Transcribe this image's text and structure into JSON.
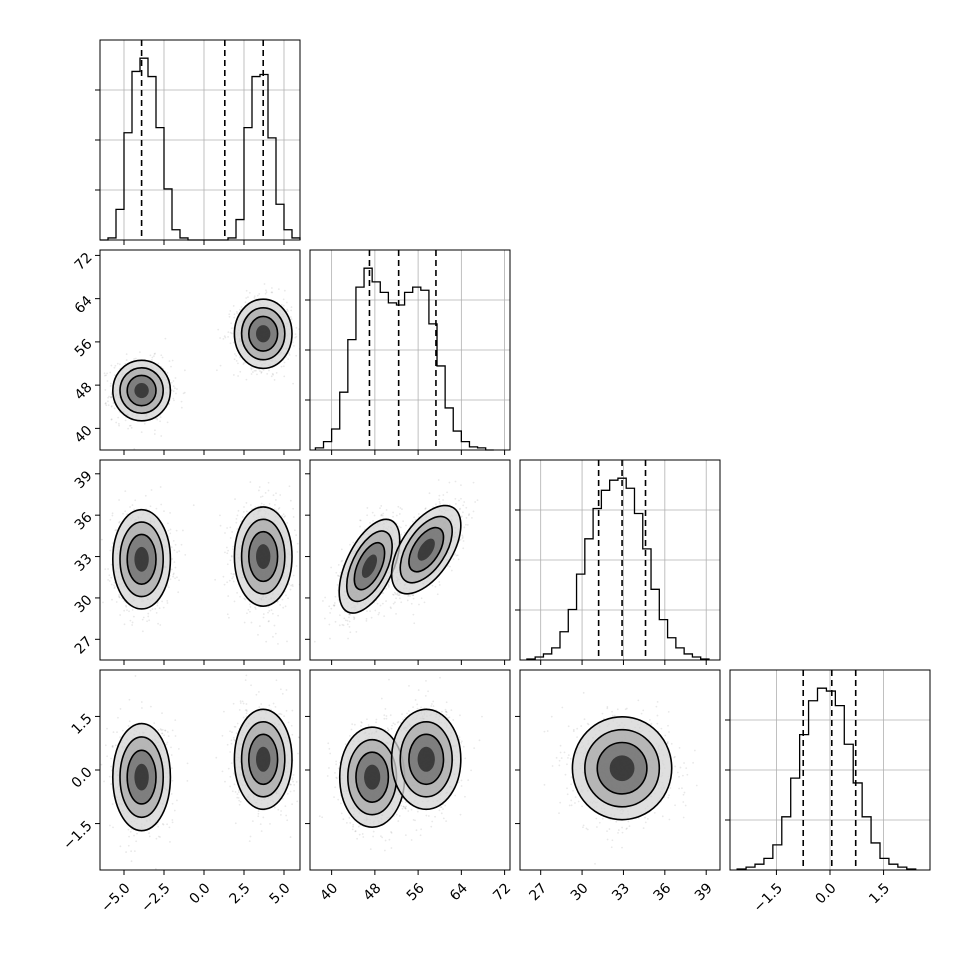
{
  "chart_data": {
    "type": "corner",
    "description_of_layout": "4x4 lower-triangular corner plot of 4 parameters",
    "parameters": [
      {
        "index": 0,
        "range": [
          -6.5,
          6.0
        ],
        "ticks": [
          -5.0,
          -2.5,
          0.0,
          2.5,
          5.0
        ],
        "tick_labels": [
          "−5.0",
          "−2.5",
          "0.0",
          "2.5",
          "5.0"
        ]
      },
      {
        "index": 1,
        "range": [
          36,
          73
        ],
        "ticks": [
          40,
          48,
          56,
          64,
          72
        ],
        "tick_labels": [
          "40",
          "48",
          "56",
          "64",
          "72"
        ]
      },
      {
        "index": 2,
        "range": [
          25.5,
          40
        ],
        "ticks": [
          27,
          30,
          33,
          36,
          39
        ],
        "tick_labels": [
          "27",
          "30",
          "33",
          "36",
          "39"
        ]
      },
      {
        "index": 3,
        "range": [
          -2.8,
          2.8
        ],
        "ticks": [
          -1.5,
          0.0,
          1.5
        ],
        "tick_labels": [
          "−1.5",
          "0.0",
          "1.5"
        ]
      }
    ],
    "quantiles": [
      [
        -3.9,
        1.3,
        3.7
      ],
      [
        47,
        52.4,
        59.3
      ],
      [
        31.2,
        32.9,
        34.6
      ],
      [
        -0.75,
        0.05,
        0.72
      ]
    ],
    "histograms": [
      {
        "param": 0,
        "edges": [
          -6.5,
          -6.0,
          -5.5,
          -5.0,
          -4.5,
          -4.0,
          -3.5,
          -3.0,
          -2.5,
          -2.0,
          -1.5,
          -1.0,
          -0.5,
          0.0,
          0.5,
          1.0,
          1.5,
          2.0,
          2.5,
          3.0,
          3.5,
          4.0,
          4.5,
          5.0,
          5.5,
          6.0
        ],
        "counts": [
          0,
          2,
          30,
          105,
          165,
          178,
          160,
          110,
          50,
          10,
          2,
          0,
          0,
          0,
          0,
          0,
          2,
          20,
          110,
          160,
          162,
          100,
          35,
          10,
          2
        ]
      },
      {
        "param": 1,
        "edges": [
          37,
          38.5,
          40,
          41.5,
          43,
          44.5,
          46,
          47.5,
          49,
          50.5,
          52,
          53.5,
          55,
          56.5,
          58,
          59.5,
          61,
          62.5,
          64,
          65.5,
          67,
          68.5,
          70
        ],
        "counts": [
          2,
          8,
          20,
          55,
          105,
          155,
          173,
          160,
          150,
          140,
          138,
          150,
          155,
          152,
          120,
          80,
          40,
          18,
          8,
          3,
          2,
          0
        ]
      },
      {
        "param": 2,
        "edges": [
          26,
          26.6,
          27.2,
          27.8,
          28.4,
          29,
          29.6,
          30.2,
          30.8,
          31.4,
          32,
          32.6,
          33.2,
          33.8,
          34.4,
          35,
          35.6,
          36.2,
          36.8,
          37.4,
          38,
          38.6,
          39.2
        ],
        "counts": [
          1,
          3,
          6,
          12,
          28,
          50,
          85,
          120,
          150,
          168,
          178,
          180,
          170,
          145,
          110,
          70,
          40,
          22,
          12,
          6,
          3,
          1
        ]
      },
      {
        "param": 3,
        "edges": [
          -2.6,
          -2.35,
          -2.1,
          -1.85,
          -1.6,
          -1.35,
          -1.1,
          -0.85,
          -0.6,
          -0.35,
          -0.1,
          0.15,
          0.4,
          0.65,
          0.9,
          1.15,
          1.4,
          1.65,
          1.9,
          2.15,
          2.4
        ],
        "counts": [
          1,
          3,
          6,
          12,
          26,
          55,
          95,
          140,
          175,
          188,
          185,
          170,
          130,
          90,
          55,
          28,
          12,
          6,
          3,
          1
        ]
      }
    ],
    "scatter_2d": [
      {
        "x_param": 0,
        "y_param": 1,
        "clusters": [
          {
            "cx": -3.9,
            "cy": 47,
            "sx": 0.9,
            "sy": 2.8
          },
          {
            "cx": 3.7,
            "cy": 57.5,
            "sx": 0.9,
            "sy": 3.2
          }
        ]
      },
      {
        "x_param": 0,
        "y_param": 2,
        "clusters": [
          {
            "cx": -3.9,
            "cy": 32.8,
            "sx": 0.9,
            "sy": 1.8
          },
          {
            "cx": 3.7,
            "cy": 33,
            "sx": 0.9,
            "sy": 1.8
          }
        ]
      },
      {
        "x_param": 1,
        "y_param": 2,
        "clusters": [
          {
            "cx": 47,
            "cy": 32.3,
            "sx": 2.8,
            "sy": 1.7,
            "rho": 0.55
          },
          {
            "cx": 57.5,
            "cy": 33.5,
            "sx": 3.2,
            "sy": 1.6,
            "rho": 0.55
          }
        ]
      },
      {
        "x_param": 0,
        "y_param": 3,
        "clusters": [
          {
            "cx": -3.9,
            "cy": -0.2,
            "sx": 0.9,
            "sy": 0.75
          },
          {
            "cx": 3.7,
            "cy": 0.3,
            "sx": 0.9,
            "sy": 0.7
          }
        ]
      },
      {
        "x_param": 1,
        "y_param": 3,
        "clusters": [
          {
            "cx": 47.5,
            "cy": -0.2,
            "sx": 3.0,
            "sy": 0.7
          },
          {
            "cx": 57.5,
            "cy": 0.3,
            "sx": 3.2,
            "sy": 0.7
          }
        ]
      },
      {
        "x_param": 2,
        "y_param": 3,
        "clusters": [
          {
            "cx": 32.9,
            "cy": 0.05,
            "sx": 1.8,
            "sy": 0.72
          }
        ]
      }
    ],
    "grid": true,
    "legend": "none"
  }
}
